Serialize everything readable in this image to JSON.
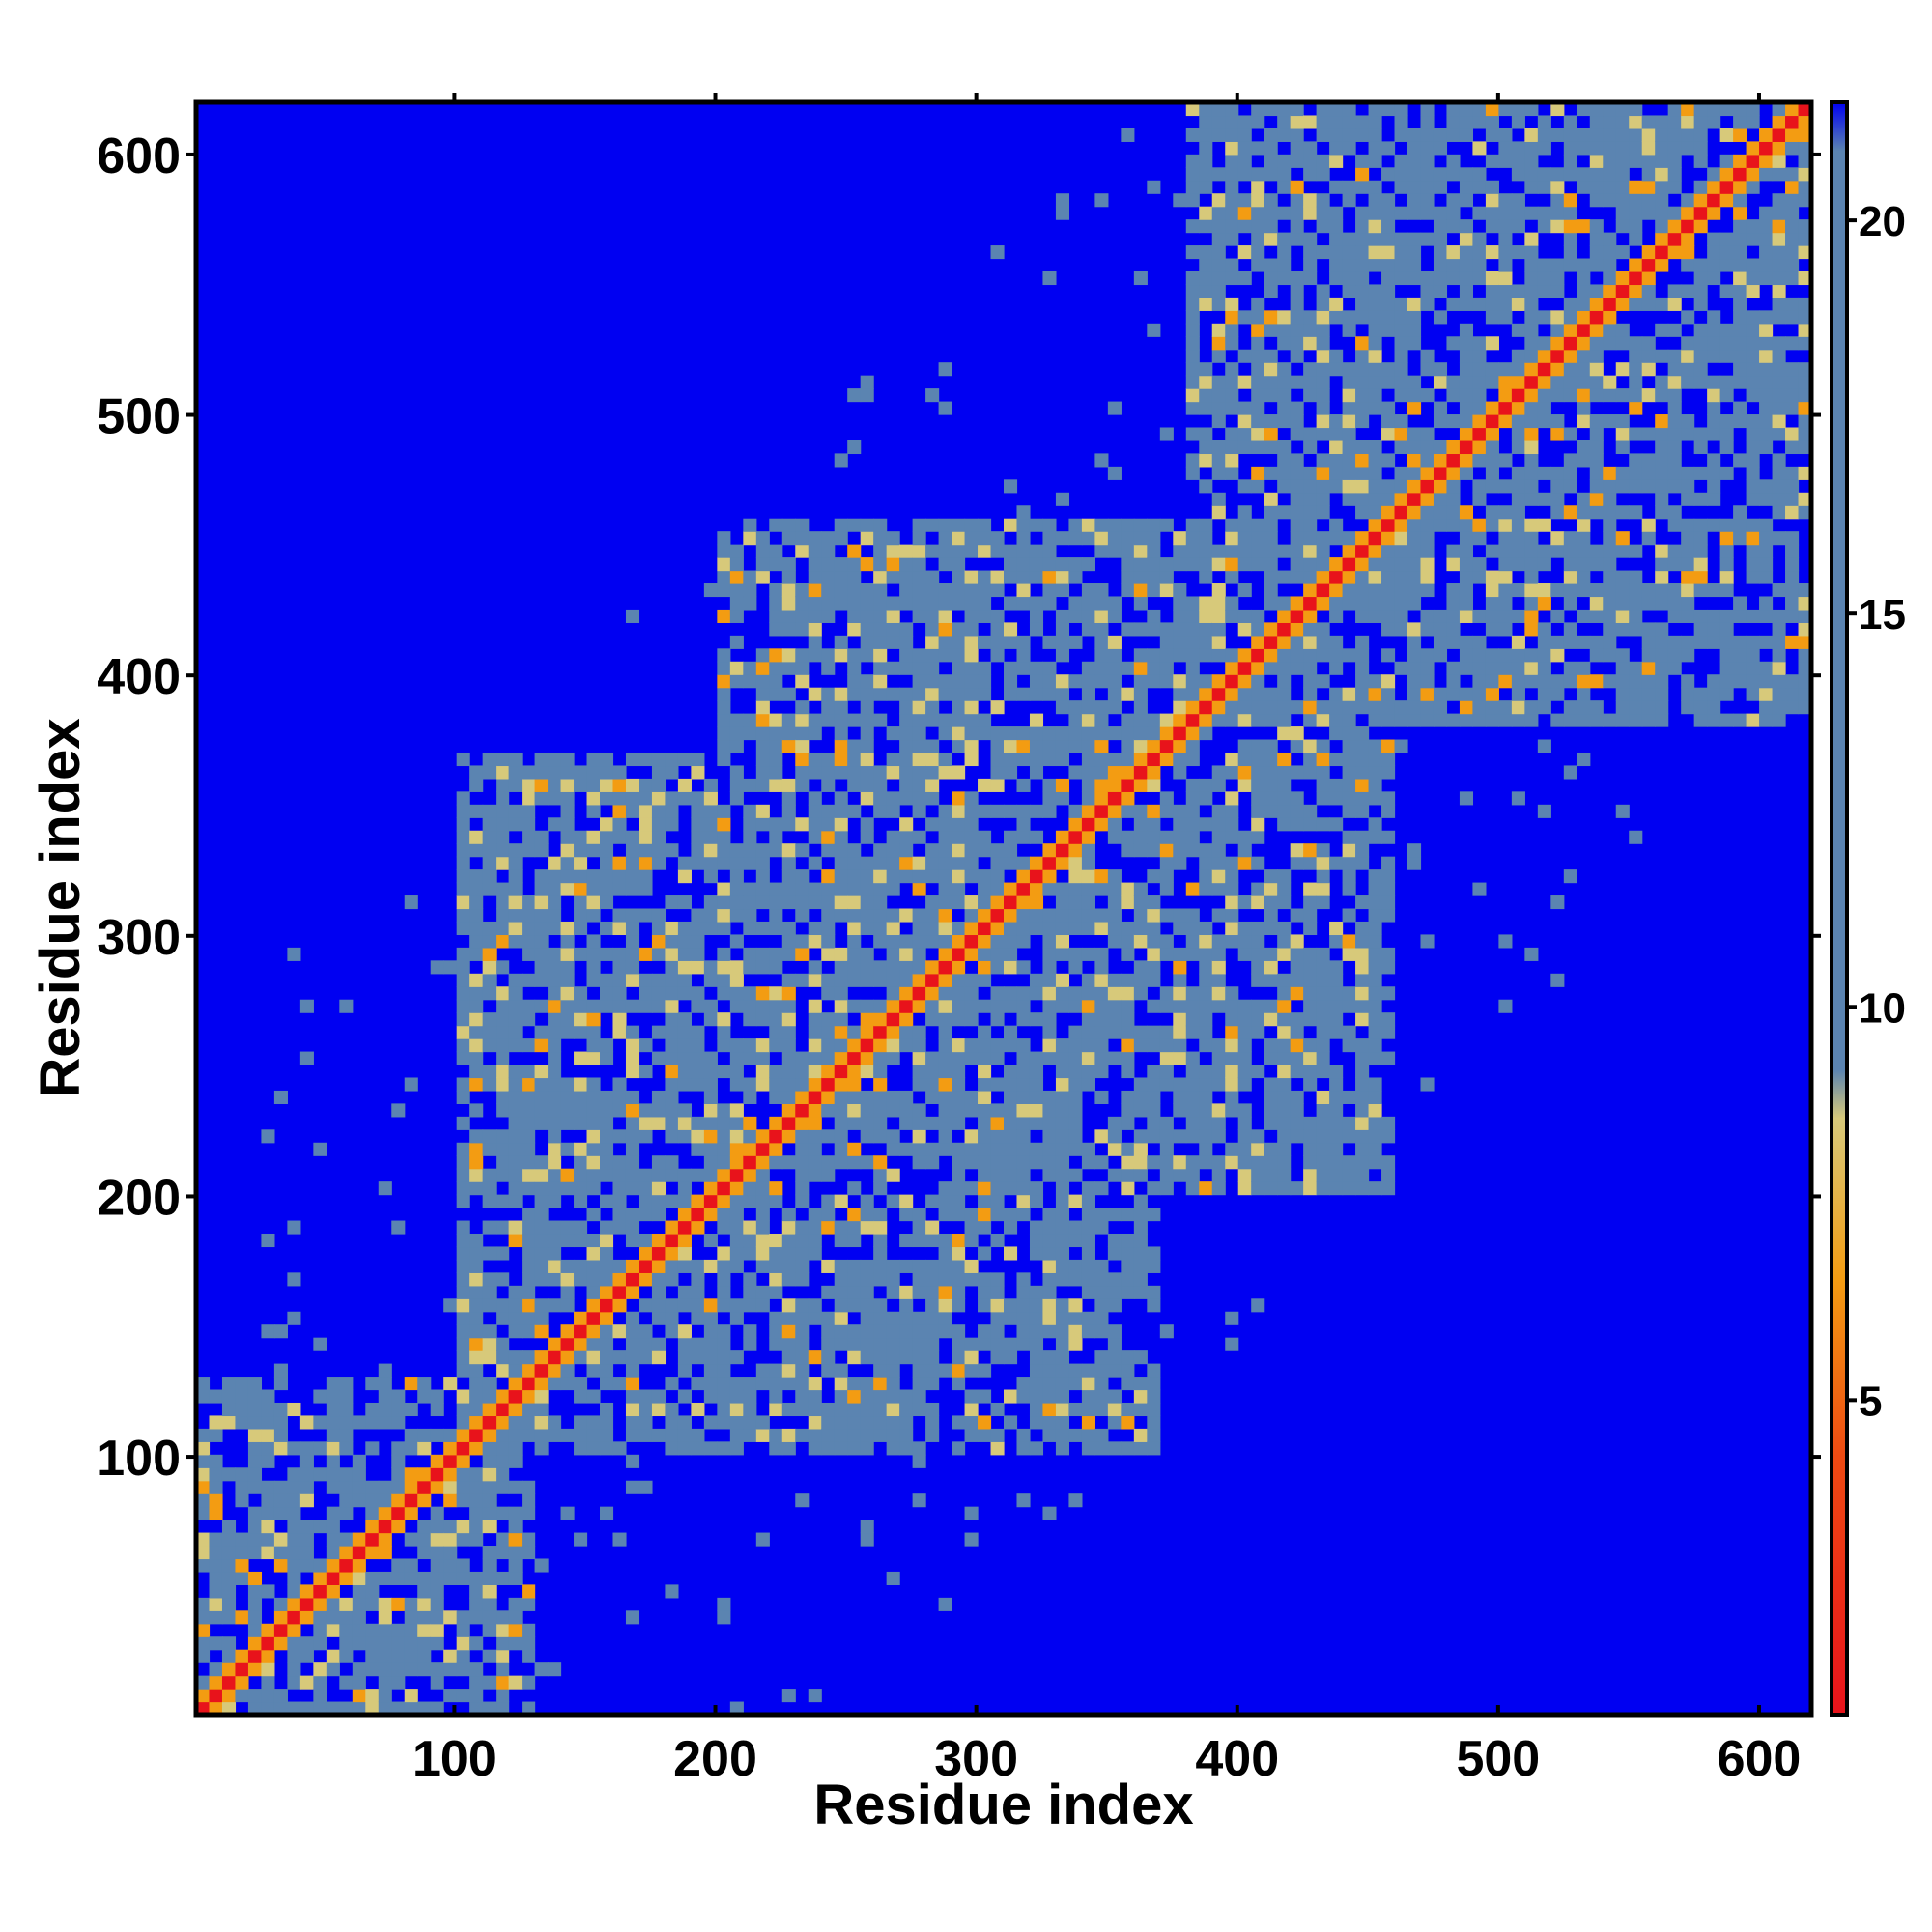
{
  "chart_data": {
    "type": "heatmap",
    "title": "",
    "xlabel": "Residue index",
    "ylabel": "Residue index",
    "xlim": [
      1,
      620
    ],
    "ylim": [
      1,
      620
    ],
    "x_ticks": [
      "100",
      "200",
      "300",
      "400",
      "500",
      "600"
    ],
    "y_ticks": [
      "100",
      "200",
      "300",
      "400",
      "500",
      "600"
    ],
    "colorbar": {
      "min": 1,
      "max": 21.5,
      "ticks": [
        "5",
        "10",
        "15",
        "20"
      ],
      "colors": {
        "near": "#e8131b",
        "close": "#f39c12",
        "mid": "#d7c97a",
        "far": "#5b84b1",
        "cutoff": "#0000f2"
      }
    },
    "domains": [
      {
        "start": 1,
        "end": 130
      },
      {
        "start": 100,
        "end": 370
      },
      {
        "start": 200,
        "end": 460
      },
      {
        "start": 380,
        "end": 620
      }
    ],
    "grid": false,
    "legend": "colorbar-right"
  }
}
